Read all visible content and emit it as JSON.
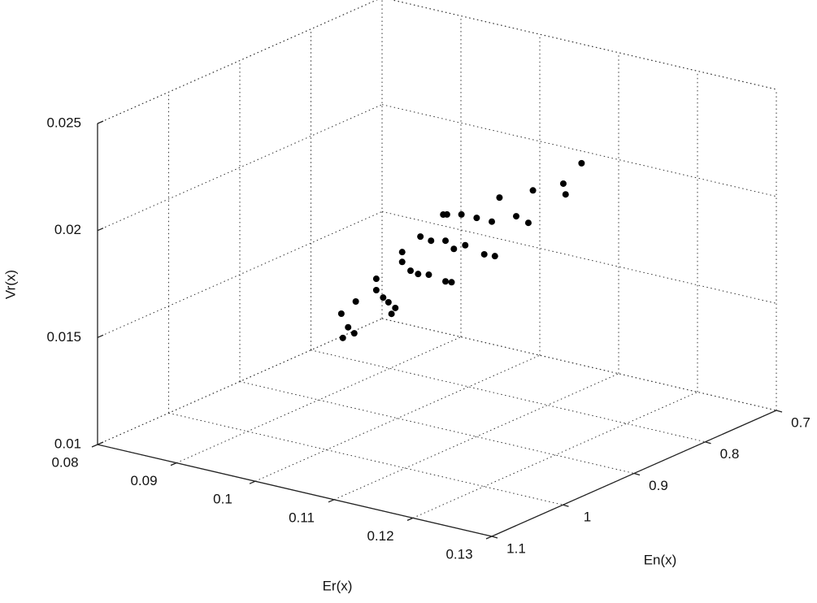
{
  "chart_data": {
    "type": "scatter3d",
    "xlabel": "Er(x)",
    "ylabel": "En(x)",
    "zlabel": "Vr(x)",
    "xlim": [
      0.08,
      0.13
    ],
    "xticks": [
      0.08,
      0.09,
      0.1,
      0.11,
      0.12,
      0.13
    ],
    "ylim": [
      0.7,
      1.1
    ],
    "yticks": [
      0.7,
      0.8,
      0.9,
      1,
      1.1
    ],
    "yreverse": true,
    "zlim": [
      0.01,
      0.025
    ],
    "zticks": [
      0.01,
      0.015,
      0.02,
      0.025
    ],
    "grid": true,
    "color": "#000000",
    "x": [
      0.1001,
      0.1,
      0.1005,
      0.1011,
      0.1012,
      0.1029,
      0.1029,
      0.1035,
      0.1039,
      0.1045,
      0.1042,
      0.1051,
      0.1051,
      0.1058,
      0.1064,
      0.1073,
      0.1066,
      0.1075,
      0.1085,
      0.1088,
      0.1087,
      0.1092,
      0.1087,
      0.1094,
      0.11,
      0.1103,
      0.1113,
      0.1119,
      0.1128,
      0.1125,
      0.1132,
      0.1146,
      0.1156,
      0.116,
      0.1185,
      0.1187,
      0.12
    ],
    "y": [
      0.978,
      0.979,
      0.975,
      0.973,
      0.972,
      0.962,
      0.962,
      0.959,
      0.956,
      0.953,
      0.955,
      0.95,
      0.95,
      0.946,
      0.942,
      0.937,
      0.941,
      0.936,
      0.93,
      0.928,
      0.929,
      0.926,
      0.929,
      0.925,
      0.921,
      0.919,
      0.914,
      0.91,
      0.905,
      0.906,
      0.903,
      0.895,
      0.889,
      0.887,
      0.872,
      0.871,
      0.863
    ],
    "z": [
      0.01491,
      0.01605,
      0.0154,
      0.01514,
      0.01662,
      0.01768,
      0.01715,
      0.01681,
      0.01658,
      0.01632,
      0.01605,
      0.01894,
      0.01848,
      0.01807,
      0.01791,
      0.01788,
      0.01966,
      0.01947,
      0.02069,
      0.02069,
      0.01757,
      0.01753,
      0.01947,
      0.01909,
      0.02069,
      0.01925,
      0.02054,
      0.01883,
      0.01875,
      0.02035,
      0.02149,
      0.02062,
      0.02031,
      0.02183,
      0.02214,
      0.02164,
      0.02309
    ]
  }
}
